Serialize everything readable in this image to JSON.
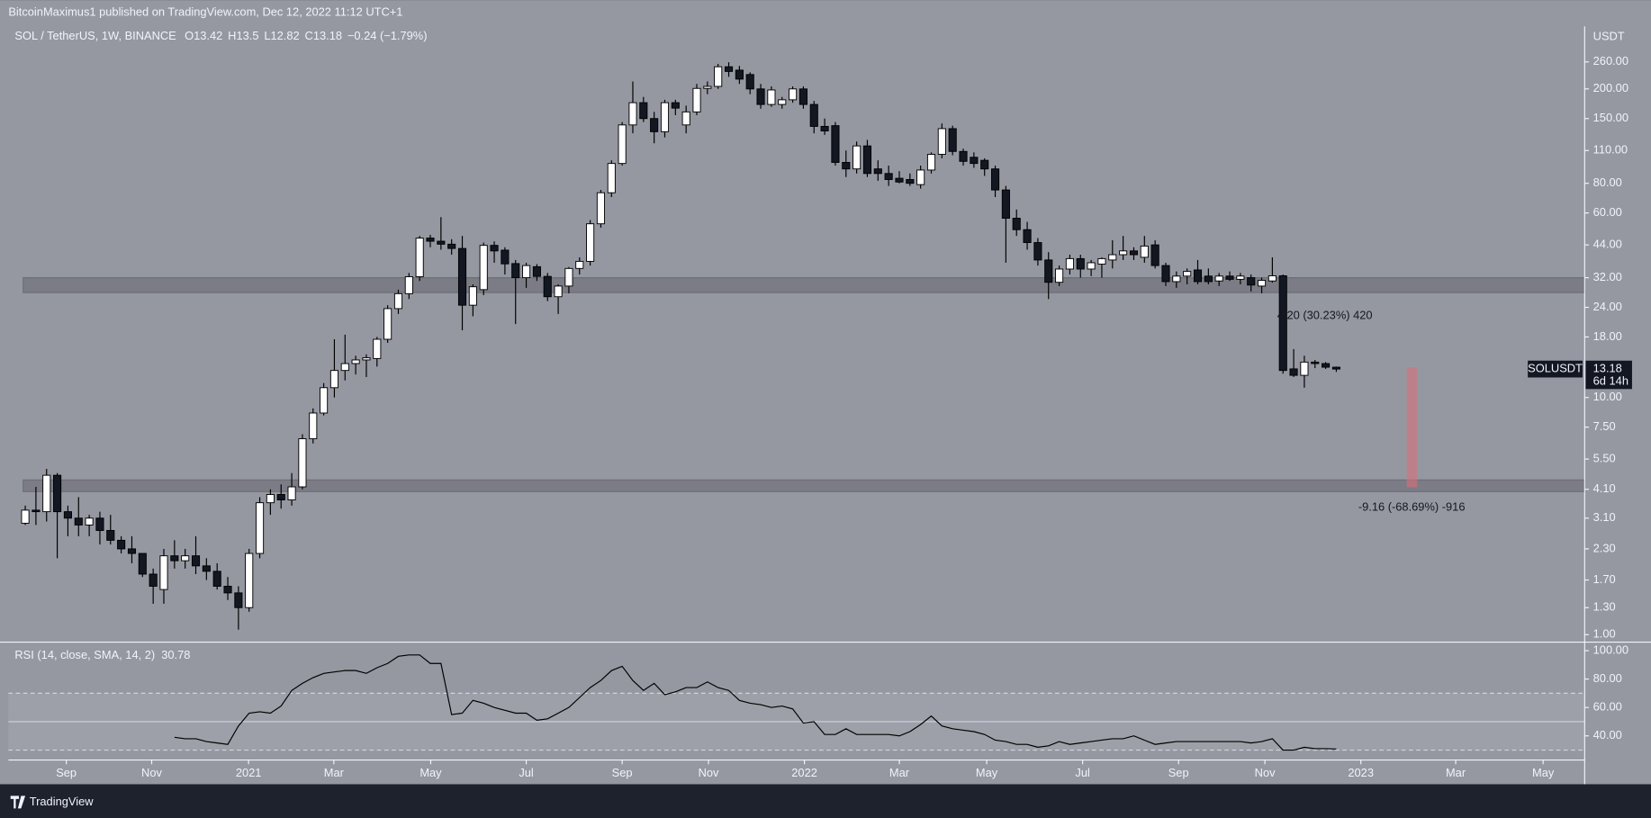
{
  "header": {
    "text": "BitcoinMaximus1 published on TradingView.com, Dec 12, 2022 11:12 UTC+1"
  },
  "footer": {
    "brand": "TradingView"
  },
  "chart_data": [
    {
      "type": "candlestick",
      "title": "SOL / TetherUS, 1W, BINANCE",
      "ohlc_labels": [
        "O",
        "H",
        "L",
        "C"
      ],
      "change": "−0.24 (−1.79%)",
      "symbol": "SOLUSDT",
      "countdown": "6d 14h",
      "axis_unit": "USDT",
      "log_scale": true,
      "grid": false,
      "colors": {
        "up": "#ffffff",
        "down": "#131722",
        "wick": "#000000"
      },
      "open": [
        2.95,
        3.35,
        3.3,
        4.7,
        3.3,
        3.1,
        2.9,
        3.1,
        2.75,
        2.5,
        2.3,
        2.2,
        1.8,
        1.55,
        2.15,
        2.05,
        2.15,
        1.95,
        1.85,
        1.6,
        1.5,
        1.3,
        2.2,
        3.6,
        3.9,
        3.7,
        4.2,
        6.7,
        8.6,
        11.0,
        13.0,
        13.9,
        14.4,
        14.6,
        17.6,
        23.7,
        27.4,
        32.3,
        47.0,
        45.6,
        44.3,
        42.5,
        24.5,
        28.5,
        43.8,
        41.8,
        36.7,
        32.0,
        35.6,
        32.4,
        26.6,
        29.5,
        35.0,
        37.5,
        54.0,
        73.0,
        97.0,
        141.0,
        175.0,
        150.0,
        132.0,
        175.0,
        141.0,
        160.0,
        201.0,
        205.0,
        248.0,
        240.0,
        230.0,
        200.0,
        172.0,
        172.0,
        180.0,
        200.0,
        172.0,
        139.0,
        140.0,
        98.0,
        92.0,
        115.0,
        92.0,
        88.0,
        84.0,
        83.0,
        79.0,
        91.0,
        106.0,
        136.0,
        109.0,
        103.0,
        100.0,
        92.0,
        75.0,
        57.0,
        51.0,
        45.0,
        38.0,
        30.6,
        34.8,
        38.5,
        34.8,
        36.5,
        38.0,
        40.0,
        41.5,
        39.0,
        44.0,
        36.0,
        30.8,
        32.5,
        34.5,
        32.5,
        31.0,
        32.5,
        31.5,
        32.0,
        29.5,
        31.0,
        32.6,
        13.2,
        12.4,
        14.1,
        13.9,
        13.42
      ],
      "high": [
        3.5,
        4.2,
        5.0,
        4.8,
        3.5,
        3.8,
        3.2,
        3.3,
        3.2,
        2.6,
        2.6,
        2.2,
        1.9,
        2.3,
        2.5,
        2.3,
        2.6,
        2.1,
        2.0,
        1.75,
        1.6,
        2.3,
        3.8,
        4.1,
        4.3,
        4.8,
        7.0,
        9.0,
        11.5,
        17.6,
        18.4,
        15.0,
        15.2,
        18.0,
        24.5,
        28.5,
        33.5,
        48.0,
        48.5,
        57.6,
        46.5,
        48.0,
        30.0,
        45.0,
        45.5,
        43.0,
        38.0,
        37.0,
        36.5,
        33.5,
        30.0,
        35.5,
        39.0,
        56.0,
        75.0,
        100.0,
        145.0,
        215.0,
        185.0,
        160.0,
        180.0,
        180.0,
        170.0,
        210.0,
        215.0,
        255.0,
        259.0,
        250.0,
        235.0,
        210.0,
        205.0,
        185.0,
        205.0,
        205.0,
        178.0,
        150.0,
        145.0,
        110.0,
        120.0,
        122.0,
        100.0,
        95.0,
        90.0,
        88.0,
        95.0,
        108.0,
        143.0,
        140.0,
        112.0,
        108.0,
        102.0,
        95.0,
        78.0,
        62.0,
        55.0,
        47.0,
        41.0,
        36.0,
        40.0,
        40.0,
        38.0,
        39.0,
        46.0,
        48.0,
        43.0,
        48.0,
        46.0,
        37.0,
        34.0,
        35.0,
        38.0,
        35.0,
        33.5,
        34.0,
        33.5,
        33.0,
        32.0,
        39.0,
        33.0,
        16.0,
        15.0,
        14.4,
        14.1,
        13.5
      ],
      "low": [
        2.9,
        2.9,
        3.0,
        2.1,
        2.6,
        2.6,
        2.6,
        2.4,
        2.4,
        2.2,
        2.0,
        1.75,
        1.35,
        1.35,
        1.9,
        1.9,
        1.8,
        1.7,
        1.55,
        1.4,
        1.05,
        1.25,
        2.1,
        3.2,
        3.4,
        3.5,
        4.1,
        6.4,
        8.4,
        10.0,
        11.8,
        12.5,
        12.2,
        13.5,
        17.0,
        22.5,
        26.0,
        31.0,
        43.0,
        42.0,
        40.0,
        19.2,
        22.0,
        27.0,
        37.0,
        33.0,
        20.4,
        29.0,
        31.0,
        25.5,
        22.5,
        27.5,
        33.0,
        36.0,
        52.0,
        70.0,
        95.0,
        130.0,
        145.0,
        118.0,
        125.0,
        155.0,
        130.0,
        155.0,
        190.0,
        200.0,
        225.0,
        210.0,
        190.0,
        165.0,
        168.0,
        165.0,
        175.0,
        165.0,
        130.0,
        128.0,
        95.0,
        85.0,
        88.0,
        85.0,
        82.0,
        78.0,
        80.0,
        78.0,
        76.0,
        88.0,
        102.0,
        105.0,
        95.0,
        93.0,
        86.0,
        70.0,
        37.0,
        48.0,
        42.0,
        36.0,
        26.0,
        29.5,
        33.0,
        32.0,
        32.5,
        32.0,
        35.0,
        38.0,
        38.0,
        37.0,
        35.0,
        29.5,
        29.0,
        30.0,
        30.0,
        30.0,
        29.5,
        31.0,
        30.0,
        28.0,
        27.5,
        30.5,
        12.6,
        12.2,
        11.0,
        13.3,
        13.2,
        12.82
      ],
      "close": [
        3.35,
        3.3,
        4.7,
        3.3,
        3.1,
        2.9,
        3.1,
        2.75,
        2.5,
        2.3,
        2.2,
        1.8,
        1.6,
        2.15,
        2.05,
        2.15,
        1.95,
        1.85,
        1.6,
        1.5,
        1.3,
        2.2,
        3.6,
        3.9,
        3.7,
        4.2,
        6.7,
        8.6,
        11.0,
        13.0,
        13.9,
        14.4,
        14.7,
        17.6,
        23.7,
        27.4,
        32.3,
        47.0,
        45.6,
        44.3,
        42.5,
        24.5,
        29.3,
        43.8,
        41.5,
        36.6,
        32.0,
        36.0,
        32.4,
        26.6,
        29.5,
        35.0,
        37.5,
        54.0,
        73.0,
        97.0,
        141.0,
        175.0,
        150.0,
        132.0,
        175.0,
        166.0,
        160.0,
        201.0,
        205.0,
        248.0,
        237.0,
        220.0,
        200.0,
        172.0,
        198.0,
        180.0,
        200.0,
        172.0,
        139.0,
        133.0,
        98.0,
        92.0,
        115.0,
        88.0,
        88.0,
        83.0,
        81.0,
        80.0,
        91.0,
        106.0,
        136.0,
        109.0,
        99.0,
        97.0,
        92.0,
        75.0,
        57.0,
        51.0,
        45.0,
        38.0,
        30.6,
        34.8,
        38.5,
        34.8,
        37.0,
        38.5,
        40.0,
        41.5,
        40.0,
        43.5,
        36.0,
        30.8,
        32.5,
        34.0,
        30.8,
        30.8,
        32.5,
        31.5,
        32.5,
        29.8,
        31.2,
        32.6,
        13.0,
        12.4,
        14.1,
        13.9,
        13.42,
        13.18
      ],
      "ylim": [
        0.93,
        367
      ],
      "yticks": [
        {
          "value": 1,
          "label": "1.00"
        },
        {
          "value": 1.3,
          "label": "1.30"
        },
        {
          "value": 1.7,
          "label": "1.70"
        },
        {
          "value": 2.3,
          "label": "2.30"
        },
        {
          "value": 3.1,
          "label": "3.10"
        },
        {
          "value": 4.1,
          "label": "4.10"
        },
        {
          "value": 5.5,
          "label": "5.50"
        },
        {
          "value": 7.5,
          "label": "7.50"
        },
        {
          "value": 10,
          "label": "10.00"
        },
        {
          "value": 18,
          "label": "18.00"
        },
        {
          "value": 24,
          "label": "24.00"
        },
        {
          "value": 32,
          "label": "32.00"
        },
        {
          "value": 44,
          "label": "44.00"
        },
        {
          "value": 60,
          "label": "60.00"
        },
        {
          "value": 80,
          "label": "80.00"
        },
        {
          "value": 110,
          "label": "110.00"
        },
        {
          "value": 150,
          "label": "150.00"
        },
        {
          "value": 200,
          "label": "200.00"
        },
        {
          "value": 260,
          "label": "260.00"
        }
      ],
      "xlim": [
        -1.58,
        146.3
      ],
      "xticks": [
        {
          "value": 3.85,
          "label": "Sep"
        },
        {
          "value": 11.86,
          "label": "Nov"
        },
        {
          "value": 20.95,
          "label": "2021"
        },
        {
          "value": 28.95,
          "label": "Mar"
        },
        {
          "value": 38.04,
          "label": "May"
        },
        {
          "value": 47.0,
          "label": "Jul"
        },
        {
          "value": 56.0,
          "label": "Sep"
        },
        {
          "value": 64.1,
          "label": "Nov"
        },
        {
          "value": 73.1,
          "label": "2022"
        },
        {
          "value": 82.0,
          "label": "Mar"
        },
        {
          "value": 90.2,
          "label": "May"
        },
        {
          "value": 99.2,
          "label": "Jul"
        },
        {
          "value": 108.2,
          "label": "Sep"
        },
        {
          "value": 116.3,
          "label": "Nov"
        },
        {
          "value": 125.3,
          "label": "2023"
        },
        {
          "value": 134.2,
          "label": "Mar"
        },
        {
          "value": 142.4,
          "label": "May"
        }
      ],
      "zones": [
        {
          "low": 27.7,
          "high": 32.0
        },
        {
          "low": 4.01,
          "high": 4.49
        }
      ],
      "measure": {
        "x": 130.1,
        "high": 13.4,
        "low": 4.18,
        "color": "#d9707c"
      },
      "annotations": [
        "4.20 (30.23%) 420",
        "-9.16 (-68.69%) -916"
      ]
    },
    {
      "type": "line",
      "title": "RSI (14, close, SMA, 14, 2)",
      "series": [
        {
          "name": "RSI",
          "color": "#000000",
          "values": [
            null,
            null,
            null,
            null,
            null,
            null,
            null,
            null,
            null,
            null,
            null,
            null,
            null,
            null,
            39,
            38,
            38,
            36,
            35,
            34,
            47,
            56,
            57,
            56,
            61,
            72,
            77,
            81,
            84,
            85,
            86,
            86,
            84,
            88,
            91,
            96,
            97,
            97,
            91,
            91,
            55,
            56,
            65,
            63,
            60,
            58,
            56,
            56,
            51,
            52,
            56,
            60,
            67,
            74,
            79,
            86,
            89,
            79,
            72,
            77,
            69,
            71,
            74,
            74,
            78,
            74,
            72,
            65,
            63,
            62,
            60,
            61,
            59,
            49,
            50,
            41,
            41,
            45,
            41,
            41,
            41,
            41,
            40,
            43,
            48,
            54,
            47,
            45,
            44,
            43,
            41,
            37,
            36,
            34,
            34,
            32,
            33,
            36,
            34,
            35,
            36,
            37,
            38,
            38,
            40,
            37,
            34,
            35,
            36,
            36,
            36,
            36,
            36,
            36,
            36,
            35,
            36,
            38,
            30,
            30,
            32,
            31,
            31,
            30.78
          ]
        }
      ],
      "bands": {
        "upper": 70,
        "middle": 50,
        "lower": 30
      },
      "ylim": [
        23,
        106
      ],
      "yticks": [
        {
          "value": 40,
          "label": "40.00"
        },
        {
          "value": 60,
          "label": "60.00"
        },
        {
          "value": 80,
          "label": "80.00"
        },
        {
          "value": 100,
          "label": "100.00"
        }
      ]
    }
  ]
}
